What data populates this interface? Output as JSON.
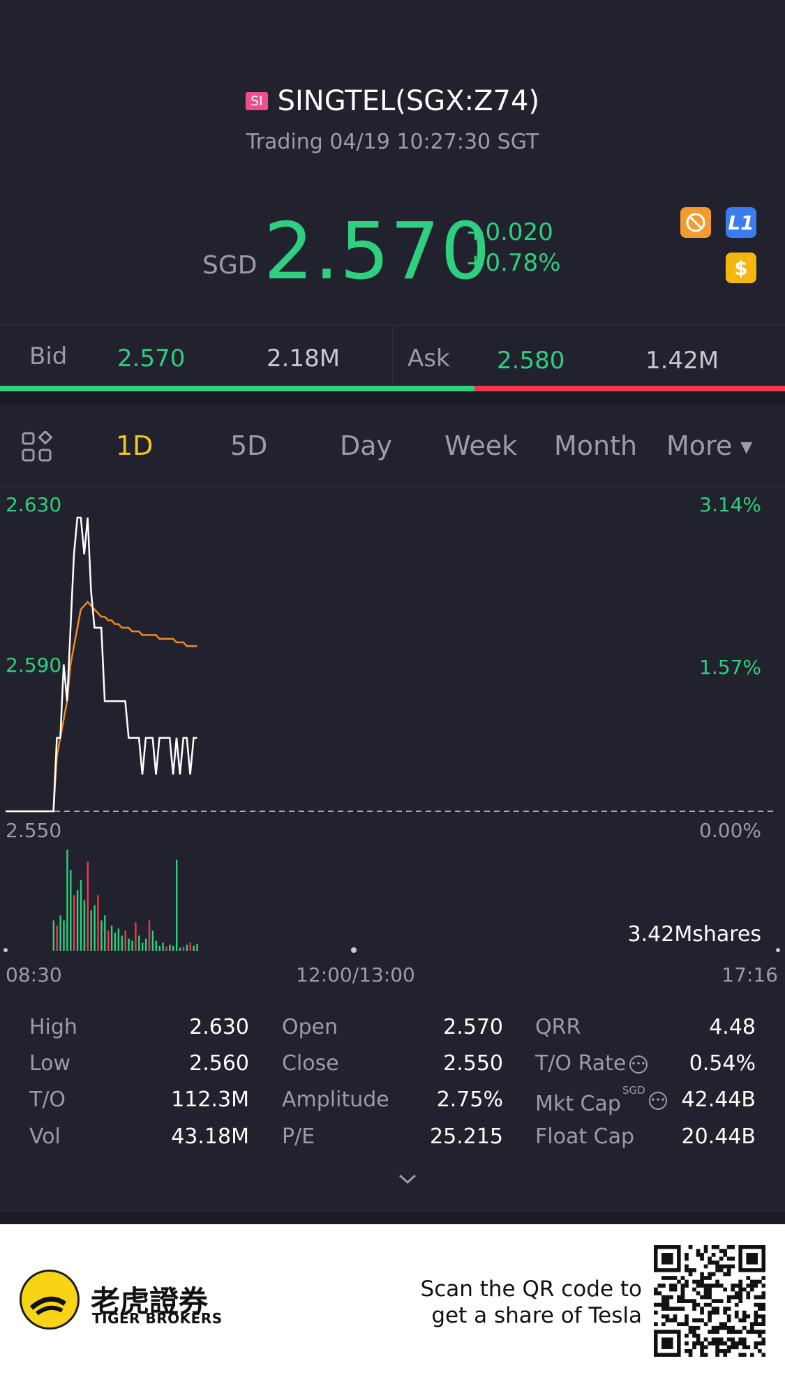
{
  "header": {
    "market_badge": "SI",
    "title": "SINGTEL(SGX:Z74)",
    "status": "Trading 04/19 10:27:30 SGT"
  },
  "quote": {
    "currency": "SGD",
    "price": "2.570",
    "change": "+0.020",
    "change_pct": "+0.78%"
  },
  "icons": {
    "no_short": "no-short-icon",
    "level1": "level1-icon",
    "level1_text": "L1",
    "dollar": "dollar-icon",
    "dollar_text": "$"
  },
  "bidask": {
    "bid_label": "Bid",
    "bid_price": "2.570",
    "bid_size": "2.18M",
    "ask_label": "Ask",
    "ask_price": "2.580",
    "ask_size": "1.42M",
    "bid_ratio": 0.604
  },
  "tabs": {
    "items": [
      "1D",
      "5D",
      "Day",
      "Week",
      "Month",
      "More"
    ],
    "active": "1D"
  },
  "chart": {
    "y_top": "2.630",
    "y_mid": "2.590",
    "y_bot": "2.550",
    "pct_top": "3.14%",
    "pct_mid": "1.57%",
    "pct_bot": "0.00%",
    "volume_label": "3.42Mshares",
    "x_start": "08:30",
    "x_mid": "12:00/13:00",
    "x_end": "17:16",
    "colors": {
      "price": "#ffffff",
      "avg": "#f08a1c",
      "up": "#2ecf7e",
      "down": "#f0394f"
    }
  },
  "chart_data": {
    "type": "line",
    "ylim": [
      2.55,
      2.63
    ],
    "series": [
      {
        "values": [
          2.55,
          2.55,
          2.55,
          2.55,
          2.55,
          2.55,
          2.55,
          2.55,
          2.55,
          2.55,
          2.55,
          2.55,
          2.55,
          2.55,
          2.55,
          2.57,
          2.57,
          2.59,
          2.58,
          2.6,
          2.62,
          2.63,
          2.63,
          2.62,
          2.63,
          2.61,
          2.6,
          2.6,
          2.6,
          2.58,
          2.58,
          2.58,
          2.58,
          2.58,
          2.58,
          2.58,
          2.57,
          2.57,
          2.57,
          2.57,
          2.56,
          2.57,
          2.57,
          2.57,
          2.56,
          2.57,
          2.57,
          2.57,
          2.57,
          2.56,
          2.57,
          2.56,
          2.57,
          2.57,
          2.56,
          2.57,
          2.57
        ]
      },
      {
        "values": [
          2.55,
          2.55,
          2.55,
          2.55,
          2.55,
          2.55,
          2.55,
          2.55,
          2.55,
          2.55,
          2.55,
          2.55,
          2.55,
          2.55,
          2.55,
          2.565,
          2.57,
          2.575,
          2.58,
          2.59,
          2.595,
          2.6,
          2.605,
          2.606,
          2.607,
          2.606,
          2.605,
          2.604,
          2.603,
          2.603,
          2.602,
          2.602,
          2.601,
          2.601,
          2.6,
          2.6,
          2.6,
          2.599,
          2.599,
          2.599,
          2.598,
          2.598,
          2.598,
          2.598,
          2.598,
          2.597,
          2.597,
          2.597,
          2.597,
          2.597,
          2.596,
          2.596,
          2.596,
          2.595,
          2.595,
          2.595,
          2.595
        ]
      }
    ],
    "volume": [
      0,
      0,
      0,
      0,
      0,
      0,
      0,
      0,
      0,
      0,
      0,
      0,
      0,
      0,
      0.3,
      0.25,
      0.35,
      0.3,
      1.0,
      0.8,
      0.55,
      0.6,
      0.7,
      0.5,
      0.88,
      0.4,
      0.45,
      0.55,
      0.3,
      0.35,
      0.2,
      0.25,
      0.18,
      0.22,
      0.15,
      0.2,
      0.12,
      0.1,
      0.28,
      0.15,
      0.08,
      0.12,
      0.3,
      0.2,
      0.1,
      0.05,
      0.08,
      0.04,
      0.06,
      0.05,
      0.9,
      0.03,
      0.04,
      0.06,
      0.08,
      0.05,
      0.07
    ],
    "volume_up": [
      1,
      1,
      1,
      1,
      1,
      1,
      1,
      1,
      1,
      1,
      1,
      1,
      1,
      1,
      1,
      0,
      1,
      1,
      1,
      1,
      0,
      1,
      1,
      1,
      0,
      1,
      1,
      0,
      1,
      1,
      0,
      1,
      1,
      1,
      1,
      0,
      1,
      1,
      0,
      1,
      1,
      1,
      0,
      1,
      1,
      1,
      1,
      0,
      1,
      1,
      1,
      1,
      0,
      1,
      0,
      1,
      1
    ]
  },
  "stats": {
    "col1": [
      {
        "label": "High",
        "value": "2.630"
      },
      {
        "label": "Low",
        "value": "2.560"
      },
      {
        "label": "T/O",
        "value": "112.3M"
      },
      {
        "label": "Vol",
        "value": "43.18M"
      }
    ],
    "col2": [
      {
        "label": "Open",
        "value": "2.570"
      },
      {
        "label": "Close",
        "value": "2.550"
      },
      {
        "label": "Amplitude",
        "value": "2.75%"
      },
      {
        "label": "P/E",
        "value": "25.215"
      }
    ],
    "col3": [
      {
        "label": "QRR",
        "value": "4.48"
      },
      {
        "label": "T/O Rate",
        "value": "0.54%"
      },
      {
        "label": "Mkt Cap",
        "sup": "SGD",
        "value": "42.44B"
      },
      {
        "label": "Float Cap",
        "value": "20.44B"
      }
    ]
  },
  "footer": {
    "brand_cn": "老虎證券",
    "brand_en": "TIGER BROKERS",
    "scan_line1": "Scan the QR code to",
    "scan_line2": "get a share of Tesla"
  }
}
